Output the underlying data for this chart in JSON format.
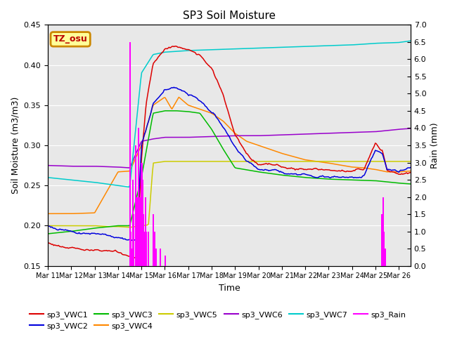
{
  "title": "SP3 Soil Moisture",
  "xlabel": "Time",
  "ylabel_left": "Soil Moisture (m3/m3)",
  "ylabel_right": "Rain (mm)",
  "ylim_left": [
    0.15,
    0.45
  ],
  "ylim_right": [
    0.0,
    7.0
  ],
  "yticks_left": [
    0.15,
    0.2,
    0.25,
    0.3,
    0.35,
    0.4,
    0.45
  ],
  "yticks_right": [
    0.0,
    0.5,
    1.0,
    1.5,
    2.0,
    2.5,
    3.0,
    3.5,
    4.0,
    4.5,
    5.0,
    5.5,
    6.0,
    6.5,
    7.0
  ],
  "colors": {
    "sp3_VWC1": "#dd0000",
    "sp3_VWC2": "#0000dd",
    "sp3_VWC3": "#00bb00",
    "sp3_VWC4": "#ff8800",
    "sp3_VWC5": "#cccc00",
    "sp3_VWC6": "#9900cc",
    "sp3_VWC7": "#00cccc",
    "sp3_Rain": "#ff00ff"
  },
  "bg_color": "#e8e8e8",
  "grid_color": "#ffffff",
  "annotation_text": "TZ_osu",
  "annotation_color": "#bb0000",
  "annotation_bg": "#ffff99",
  "annotation_border": "#cc8800",
  "xlim": [
    0,
    15.5
  ],
  "n_days": 16
}
